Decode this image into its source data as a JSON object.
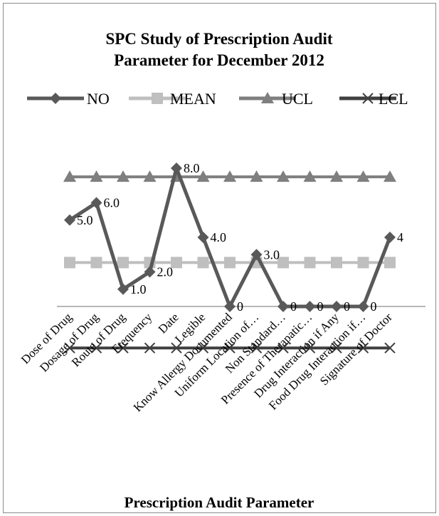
{
  "chart_data": {
    "type": "line",
    "title_lines": [
      "SPC Study of Prescription Audit",
      "Parameter for December 2012"
    ],
    "xlabel": "Prescription Audit Parameter",
    "ylabel": "",
    "categories": [
      "Dose of Drug",
      "Dosage of Drug",
      "Route of Drug",
      "Frequency",
      "Date",
      "Legible",
      "Know Allergy Documented",
      "Uniform Location of…",
      "Non Standard…",
      "Presence of Therapatic…",
      "Drug Interaction if Any",
      "Food Drug Interaction if…",
      "Signature of Doctor"
    ],
    "series": [
      {
        "name": "NO",
        "values": [
          5,
          6,
          1,
          2,
          8,
          4,
          0,
          3,
          0,
          0,
          0,
          0,
          4
        ],
        "color": "#595959",
        "marker": "diamond"
      },
      {
        "name": "MEAN",
        "values": [
          2.54,
          2.54,
          2.54,
          2.54,
          2.54,
          2.54,
          2.54,
          2.54,
          2.54,
          2.54,
          2.54,
          2.54,
          2.54
        ],
        "color": "#bfbfbf",
        "marker": "square"
      },
      {
        "name": "UCL",
        "values": [
          7.5,
          7.5,
          7.5,
          7.5,
          7.5,
          7.5,
          7.5,
          7.5,
          7.5,
          7.5,
          7.5,
          7.5,
          7.5
        ],
        "color": "#7f7f7f",
        "marker": "triangle"
      },
      {
        "name": "LCL",
        "values": [
          -2.4,
          -2.4,
          -2.4,
          -2.4,
          -2.4,
          -2.4,
          -2.4,
          -2.4,
          -2.4,
          -2.4,
          -2.4,
          -2.4,
          -2.4
        ],
        "color": "#404040",
        "marker": "x"
      }
    ],
    "data_labels": [
      "5.0",
      "6.0",
      "1.0",
      "2.0",
      "8.0",
      "4.0",
      "0",
      "3.0",
      "0",
      "0",
      "0",
      "0",
      "4"
    ],
    "ylim": [
      -2.4,
      8.2
    ],
    "grid": false,
    "legend_position": "top"
  }
}
